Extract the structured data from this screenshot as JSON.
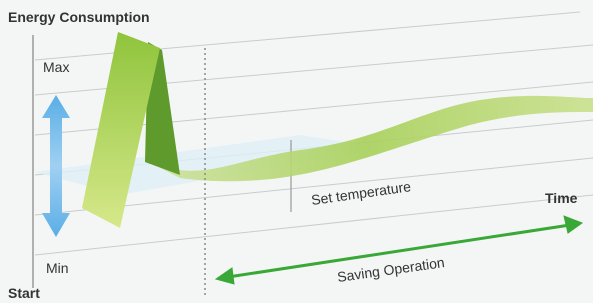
{
  "header": {
    "title": "Energy Consumption"
  },
  "axis": {
    "max": "Max",
    "min": "Min",
    "start": "Start",
    "time": "Time"
  },
  "labels": {
    "set_temperature": "Set temperature",
    "saving_operation": "Saving Operation"
  }
}
